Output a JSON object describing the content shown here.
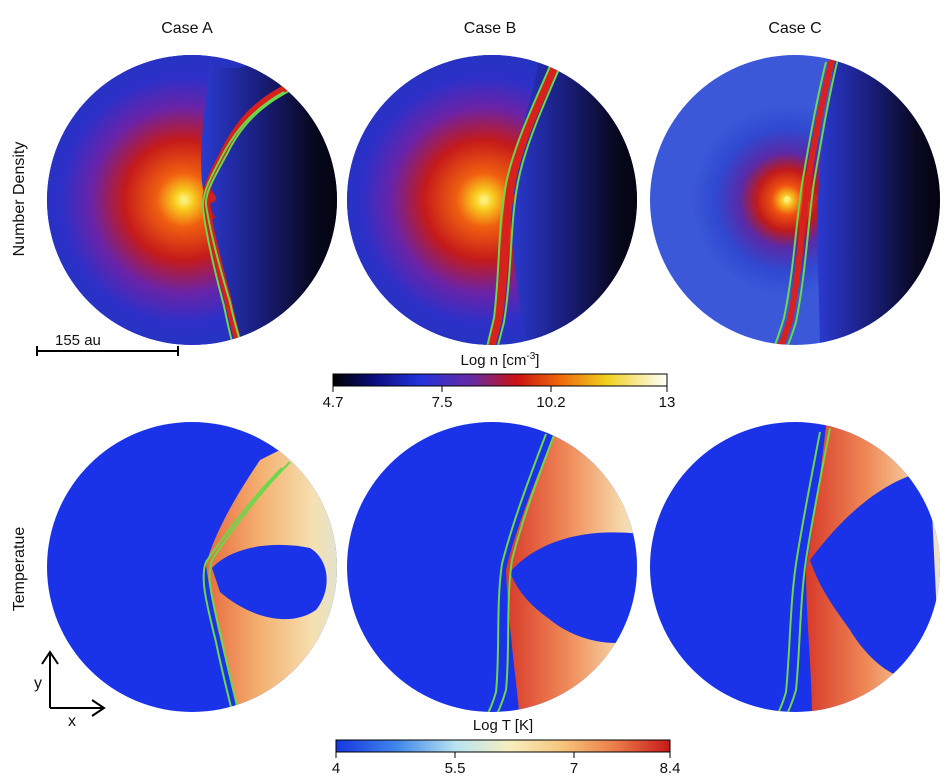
{
  "columns": [
    {
      "title": "Case A"
    },
    {
      "title": "Case B"
    },
    {
      "title": "Case C"
    }
  ],
  "rows": [
    {
      "label": "Number Density"
    },
    {
      "label": "Temperatue"
    }
  ],
  "density_colorbar": {
    "title_main": "Log n [cm",
    "title_sup": "-3",
    "title_end": "]",
    "ticks": [
      "4.7",
      "7.5",
      "10.2",
      "13"
    ],
    "colors": [
      "#000000",
      "#0b0b7a",
      "#2233dd",
      "#5a2aa8",
      "#cc1111",
      "#ee6a0a",
      "#f0d020",
      "#ffffff"
    ]
  },
  "temperature_colorbar": {
    "title": "Log T [K]",
    "ticks": [
      "4",
      "5.5",
      "7",
      "8.4"
    ],
    "colors": [
      "#1537e0",
      "#3f86ea",
      "#b9e4f0",
      "#f7efc0",
      "#f6c47a",
      "#ea7a48",
      "#c81818"
    ]
  },
  "scale_bar": {
    "label": "155 au"
  },
  "axes": {
    "x": "x",
    "y": "y"
  },
  "colors": {
    "contour": "#6ad84a",
    "background_blue": "#1a33e8"
  }
}
